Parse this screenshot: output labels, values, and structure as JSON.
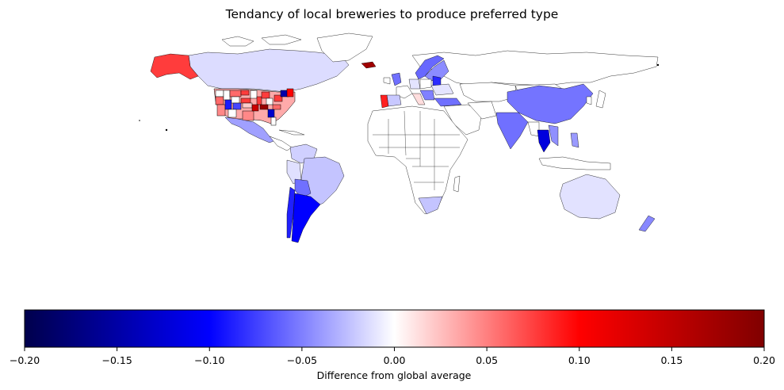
{
  "title": "Tendancy of local breweries to produce preferred type",
  "colorbar": {
    "label": "Difference from global average",
    "min": -0.2,
    "max": 0.2,
    "ticks": [
      "-0.20",
      "-0.15",
      "-0.10",
      "-0.05",
      "0.00",
      "0.05",
      "0.10",
      "0.15",
      "0.20"
    ],
    "tick_values": [
      -0.2,
      -0.15,
      -0.1,
      -0.05,
      0.0,
      0.05,
      0.1,
      0.15,
      0.2
    ],
    "colormap": "seismic",
    "stops": [
      "#00004c",
      "#0000ff",
      "#ffffff",
      "#ff0000",
      "#800000"
    ]
  },
  "regions": [
    {
      "name": "Alaska",
      "value": 0.095
    },
    {
      "name": "Canada",
      "value": -0.02
    },
    {
      "name": "United States (states)",
      "value": 0.04
    },
    {
      "name": "Mexico",
      "value": -0.05
    },
    {
      "name": "Brazil",
      "value": -0.035
    },
    {
      "name": "Argentina",
      "value": -0.1
    },
    {
      "name": "Chile",
      "value": -0.09
    },
    {
      "name": "Bolivia",
      "value": -0.06
    },
    {
      "name": "Colombia",
      "value": -0.03
    },
    {
      "name": "Iceland",
      "value": 0.17
    },
    {
      "name": "Portugal",
      "value": 0.1
    },
    {
      "name": "Spain",
      "value": -0.04
    },
    {
      "name": "United Kingdom",
      "value": -0.06
    },
    {
      "name": "Norway",
      "value": -0.07
    },
    {
      "name": "Sweden",
      "value": -0.06
    },
    {
      "name": "Turkey",
      "value": -0.06
    },
    {
      "name": "Russia",
      "value": 0.0
    },
    {
      "name": "China",
      "value": -0.07
    },
    {
      "name": "India",
      "value": -0.07
    },
    {
      "name": "Thailand",
      "value": -0.11
    },
    {
      "name": "Vietnam",
      "value": -0.06
    },
    {
      "name": "Philippines",
      "value": -0.05
    },
    {
      "name": "South Africa",
      "value": -0.035
    },
    {
      "name": "Australia",
      "value": -0.015
    },
    {
      "name": "New Zealand",
      "value": -0.05
    }
  ]
}
